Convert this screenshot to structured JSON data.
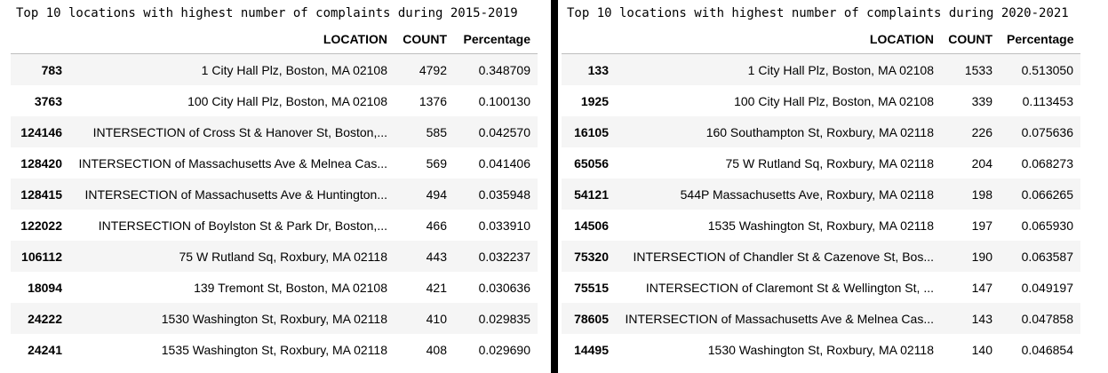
{
  "left": {
    "caption": "Top 10 locations with highest number of complaints during 2015-2019",
    "headers": {
      "index": "",
      "location": "LOCATION",
      "count": "COUNT",
      "percentage": "Percentage"
    },
    "rows": [
      {
        "index": "783",
        "location": "1 City Hall Plz, Boston, MA 02108",
        "count": "4792",
        "percentage": "0.348709"
      },
      {
        "index": "3763",
        "location": "100 City Hall Plz, Boston, MA 02108",
        "count": "1376",
        "percentage": "0.100130"
      },
      {
        "index": "124146",
        "location": "INTERSECTION of Cross St & Hanover St, Boston,...",
        "count": "585",
        "percentage": "0.042570"
      },
      {
        "index": "128420",
        "location": "INTERSECTION of Massachusetts Ave & Melnea Cas...",
        "count": "569",
        "percentage": "0.041406"
      },
      {
        "index": "128415",
        "location": "INTERSECTION of Massachusetts Ave & Huntington...",
        "count": "494",
        "percentage": "0.035948"
      },
      {
        "index": "122022",
        "location": "INTERSECTION of Boylston St & Park Dr, Boston,...",
        "count": "466",
        "percentage": "0.033910"
      },
      {
        "index": "106112",
        "location": "75 W Rutland Sq, Roxbury, MA 02118",
        "count": "443",
        "percentage": "0.032237"
      },
      {
        "index": "18094",
        "location": "139 Tremont St, Boston, MA 02108",
        "count": "421",
        "percentage": "0.030636"
      },
      {
        "index": "24222",
        "location": "1530 Washington St, Roxbury, MA 02118",
        "count": "410",
        "percentage": "0.029835"
      },
      {
        "index": "24241",
        "location": "1535 Washington St, Roxbury, MA 02118",
        "count": "408",
        "percentage": "0.029690"
      }
    ]
  },
  "right": {
    "caption": "Top 10 locations with highest number of complaints during 2020-2021",
    "headers": {
      "index": "",
      "location": "LOCATION",
      "count": "COUNT",
      "percentage": "Percentage"
    },
    "rows": [
      {
        "index": "133",
        "location": "1 City Hall Plz, Boston, MA 02108",
        "count": "1533",
        "percentage": "0.513050"
      },
      {
        "index": "1925",
        "location": "100 City Hall Plz, Boston, MA 02108",
        "count": "339",
        "percentage": "0.113453"
      },
      {
        "index": "16105",
        "location": "160 Southampton St, Roxbury, MA 02118",
        "count": "226",
        "percentage": "0.075636"
      },
      {
        "index": "65056",
        "location": "75 W Rutland Sq, Roxbury, MA 02118",
        "count": "204",
        "percentage": "0.068273"
      },
      {
        "index": "54121",
        "location": "544P Massachusetts Ave, Roxbury, MA 02118",
        "count": "198",
        "percentage": "0.066265"
      },
      {
        "index": "14506",
        "location": "1535 Washington St, Roxbury, MA 02118",
        "count": "197",
        "percentage": "0.065930"
      },
      {
        "index": "75320",
        "location": "INTERSECTION of Chandler St & Cazenove St, Bos...",
        "count": "190",
        "percentage": "0.063587"
      },
      {
        "index": "75515",
        "location": "INTERSECTION of Claremont St & Wellington St, ...",
        "count": "147",
        "percentage": "0.049197"
      },
      {
        "index": "78605",
        "location": "INTERSECTION of Massachusetts Ave & Melnea Cas...",
        "count": "143",
        "percentage": "0.047858"
      },
      {
        "index": "14495",
        "location": "1530 Washington St, Roxbury, MA 02118",
        "count": "140",
        "percentage": "0.046854"
      }
    ]
  }
}
